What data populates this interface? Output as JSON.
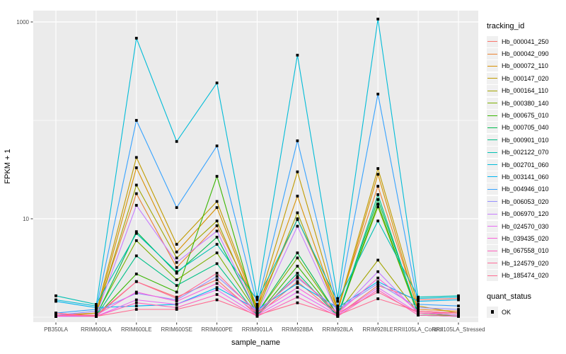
{
  "figure": {
    "background": "#ffffff",
    "panel_color": "#ebebeb",
    "gridline_color": "#ffffff",
    "axis_text_color": "#4d4d4d",
    "point_color": "#000000"
  },
  "axes": {
    "x_title": "sample_name",
    "y_title": "FPKM + 1",
    "y_ticks": [
      {
        "label": "1000",
        "value": 1000
      },
      {
        "label": "10",
        "value": 10
      }
    ],
    "y_minor": [
      100,
      1
    ],
    "y_scale": "log10"
  },
  "legend": {
    "tracking_title": "tracking_id",
    "quant_title": "quant_status",
    "quant_items": [
      {
        "label": "OK"
      }
    ]
  },
  "chart_data": {
    "type": "line",
    "title": "",
    "xlabel": "sample_name",
    "ylabel": "FPKM + 1",
    "y_scale": "log10",
    "ylim": [
      0.89,
      1300
    ],
    "grid": true,
    "legend_position": "right",
    "categories": [
      "PB350LA",
      "RRIM600LA",
      "RRIM600LE",
      "RRIM600SE",
      "RRIM600PE",
      "RRIM901LA",
      "RRIM928BA",
      "RRIM928LA",
      "RRIM928LE",
      "RRII105LA_Control",
      "RRII105LA_Stressed"
    ],
    "series": [
      {
        "name": "Hb_000041_250",
        "color": "#F8766D",
        "values": [
          1.1,
          1.02,
          2.3,
          1.6,
          2.4,
          1.05,
          2.3,
          1.05,
          2.1,
          1.5,
          1.55
        ]
      },
      {
        "name": "Hb_000042_090",
        "color": "#EA8331",
        "values": [
          1.05,
          1.1,
          18.0,
          3.2,
          8.5,
          1.3,
          10.0,
          1.25,
          21.4,
          1.2,
          1.15
        ]
      },
      {
        "name": "Hb_000072_110",
        "color": "#D89000",
        "values": [
          1.02,
          1.05,
          33.0,
          4.6,
          13.0,
          1.2,
          17.0,
          1.15,
          28.3,
          1.15,
          1.1
        ]
      },
      {
        "name": "Hb_000147_020",
        "color": "#C09B00",
        "values": [
          1.02,
          1.1,
          42.0,
          5.5,
          15.0,
          1.25,
          30.0,
          1.2,
          32.4,
          1.3,
          1.1
        ]
      },
      {
        "name": "Hb_000164_110",
        "color": "#A3A500",
        "values": [
          1.02,
          1.05,
          22.0,
          4.0,
          9.5,
          1.15,
          11.5,
          1.1,
          3.8,
          1.1,
          1.05
        ]
      },
      {
        "name": "Hb_000380_140",
        "color": "#7CAE00",
        "values": [
          1.02,
          1.05,
          6.0,
          2.4,
          4.5,
          1.1,
          4.0,
          1.05,
          13.2,
          1.05,
          1.05
        ]
      },
      {
        "name": "Hb_000675_010",
        "color": "#39B600",
        "values": [
          1.02,
          1.02,
          2.75,
          1.8,
          27.0,
          1.05,
          3.3,
          1.02,
          14.1,
          1.05,
          1.02
        ]
      },
      {
        "name": "Hb_000705_040",
        "color": "#00BB4E",
        "values": [
          1.02,
          1.02,
          7.4,
          2.8,
          6.5,
          1.1,
          4.5,
          1.05,
          15.7,
          1.1,
          1.05
        ]
      },
      {
        "name": "Hb_000901_010",
        "color": "#00C087",
        "values": [
          1.02,
          1.02,
          4.2,
          2.1,
          3.5,
          1.05,
          2.8,
          1.02,
          17.6,
          1.05,
          1.02
        ]
      },
      {
        "name": "Hb_002122_070",
        "color": "#00C0B2",
        "values": [
          1.65,
          1.35,
          7.1,
          2.9,
          5.5,
          1.5,
          9.8,
          1.45,
          9.5,
          1.6,
          1.65
        ]
      },
      {
        "name": "Hb_002701_060",
        "color": "#00BCD8",
        "values": [
          1.5,
          1.3,
          684,
          61.0,
          240,
          1.6,
          460,
          1.55,
          1070,
          1.55,
          1.6
        ]
      },
      {
        "name": "Hb_003141_060",
        "color": "#00B4F0",
        "values": [
          1.45,
          1.25,
          1.3,
          1.35,
          2.0,
          1.2,
          2.2,
          1.25,
          2.3,
          1.45,
          1.5
        ]
      },
      {
        "name": "Hb_004946_010",
        "color": "#35A2FF",
        "values": [
          1.1,
          1.2,
          100,
          13.0,
          55.0,
          1.35,
          62.0,
          1.3,
          185,
          1.35,
          1.3
        ]
      },
      {
        "name": "Hb_006053_020",
        "color": "#9590FF",
        "values": [
          1.05,
          1.15,
          1.75,
          1.5,
          2.6,
          1.15,
          2.5,
          1.2,
          2.2,
          1.25,
          1.2
        ]
      },
      {
        "name": "Hb_006970_120",
        "color": "#C77CFF",
        "values": [
          1.02,
          1.05,
          13.7,
          3.6,
          7.5,
          1.1,
          8.4,
          1.1,
          2.9,
          1.1,
          1.1
        ]
      },
      {
        "name": "Hb_024570_030",
        "color": "#E76BF3",
        "values": [
          1.02,
          1.02,
          1.5,
          1.35,
          1.9,
          1.05,
          1.8,
          1.05,
          2.0,
          1.1,
          1.05
        ]
      },
      {
        "name": "Hb_039435_020",
        "color": "#FA62DB",
        "values": [
          1.02,
          1.05,
          1.8,
          1.45,
          2.2,
          1.1,
          2.0,
          1.1,
          2.5,
          1.15,
          1.1
        ]
      },
      {
        "name": "Hb_067558_010",
        "color": "#FF62BC",
        "values": [
          1.05,
          1.02,
          1.4,
          1.25,
          1.7,
          1.02,
          1.6,
          1.02,
          1.9,
          1.05,
          1.02
        ]
      },
      {
        "name": "Hb_124579_020",
        "color": "#FF6A98",
        "values": [
          1.05,
          1.05,
          2.3,
          1.55,
          2.8,
          1.1,
          2.6,
          1.1,
          1.8,
          1.1,
          1.1
        ]
      },
      {
        "name": "Hb_185474_020",
        "color": "#FF6C91",
        "values": [
          1.1,
          1.02,
          1.2,
          1.2,
          1.5,
          1.05,
          1.4,
          1.05,
          1.54,
          1.15,
          1.1
        ]
      }
    ]
  }
}
